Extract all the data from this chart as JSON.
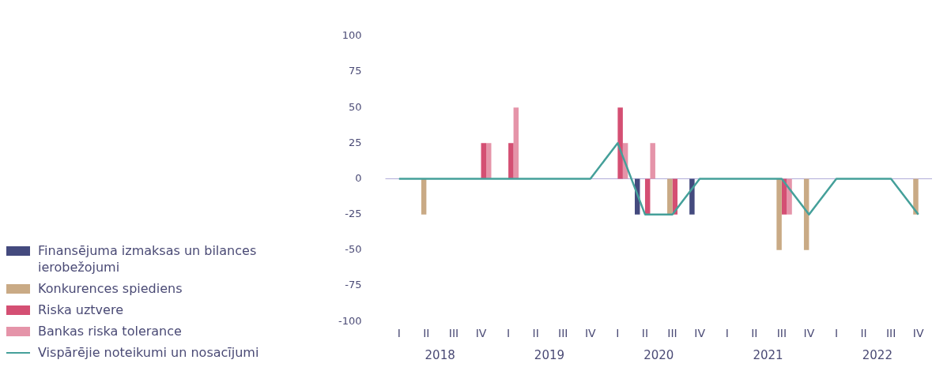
{
  "chart_data": {
    "type": "bar",
    "categories": [
      "I",
      "II",
      "III",
      "IV",
      "I",
      "II",
      "III",
      "IV",
      "I",
      "II",
      "III",
      "IV",
      "I",
      "II",
      "III",
      "IV",
      "I",
      "II",
      "III",
      "IV"
    ],
    "series": [
      {
        "name": "Finansējuma izmaksas un bilances ierobežojumi",
        "color": "#444a7e",
        "values": [
          0,
          0,
          0,
          0,
          0,
          0,
          0,
          0,
          0,
          -25,
          0,
          -25,
          0,
          0,
          0,
          0,
          0,
          0,
          0,
          0
        ]
      },
      {
        "name": "Konkurences spiediens",
        "color": "#c9aa85",
        "values": [
          0,
          -25,
          0,
          0,
          0,
          0,
          0,
          0,
          0,
          0,
          -25,
          0,
          0,
          0,
          -50,
          -50,
          0,
          0,
          0,
          -25
        ]
      },
      {
        "name": "Riska uztvere",
        "color": "#d44f73",
        "values": [
          0,
          0,
          0,
          25,
          25,
          0,
          0,
          0,
          50,
          -25,
          -25,
          0,
          0,
          0,
          -25,
          0,
          0,
          0,
          0,
          0
        ]
      },
      {
        "name": "Bankas riska tolerance",
        "color": "#e594a9",
        "values": [
          0,
          0,
          0,
          25,
          50,
          0,
          0,
          0,
          25,
          25,
          0,
          0,
          0,
          0,
          -25,
          0,
          0,
          0,
          0,
          0
        ]
      },
      {
        "name": "Vispārējie noteikumi un nosacījumi",
        "type": "line",
        "color": "#45a09a",
        "values": [
          0,
          0,
          0,
          0,
          0,
          0,
          0,
          0,
          25,
          -25,
          -25,
          0,
          0,
          0,
          0,
          -25,
          0,
          0,
          0,
          -25
        ]
      }
    ],
    "ylim": [
      -100,
      100
    ],
    "yticks": [
      -100,
      -75,
      -50,
      -25,
      0,
      25,
      50,
      75,
      100
    ],
    "grid": false,
    "legend": "left",
    "marker": "none",
    "ref_lines": [
      {
        "axis": "y",
        "value": 0,
        "color": "#b0acd8"
      }
    ],
    "annotations": [
      "2018",
      "2019",
      "2020",
      "2021",
      "2022"
    ]
  }
}
